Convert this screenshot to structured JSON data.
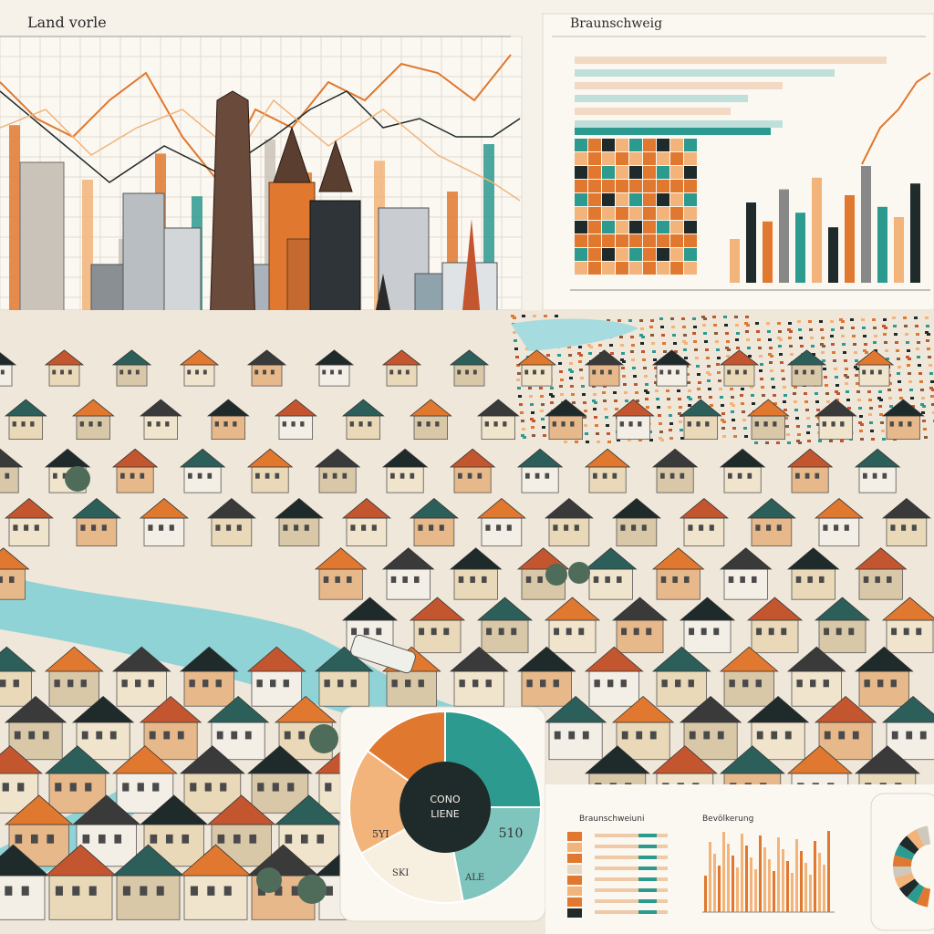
{
  "panels": {
    "top_left": {
      "title": "Land vorle"
    },
    "top_right": {
      "title": "Braunschweig"
    },
    "donut": {
      "center_line1": "CONO",
      "center_line2": "LIENE",
      "label_right": "510",
      "label_left": "5YI",
      "label_bottom": "SKI",
      "label_bottom_right": "ALE"
    },
    "bottom_left_chart": {
      "title": "Braunschweiuni"
    },
    "bottom_mid_chart": {
      "title": "Bevölkerung"
    }
  },
  "colors": {
    "orange": "#e0782f",
    "teal": "#2d9a8f",
    "peach": "#f2b47a",
    "dark": "#1f2a2a",
    "cream": "#f6f2ea",
    "roof_red": "#c4562f",
    "river": "#8fd3d6"
  },
  "chart_data": [
    {
      "type": "bar",
      "title": "",
      "values": [
        78,
        40,
        55,
        30,
        66,
        48,
        35,
        72,
        58,
        44,
        63,
        38,
        50,
        70
      ]
    },
    {
      "type": "bar",
      "title": "",
      "values": [
        30,
        55,
        42,
        64,
        48,
        72,
        38,
        60,
        80,
        52,
        45,
        68
      ]
    },
    {
      "type": "pie",
      "title": "",
      "values": [
        25,
        22,
        20,
        18,
        15
      ]
    }
  ]
}
